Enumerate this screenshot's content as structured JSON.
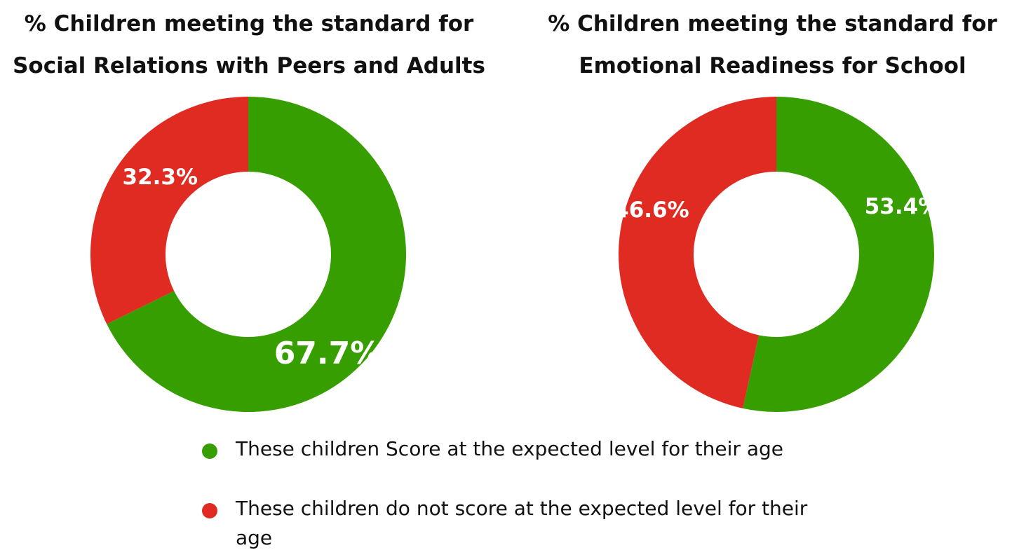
{
  "colors": {
    "meets": "#379e00",
    "not_meets": "#e02b22",
    "label": "#ffffff"
  },
  "chart_data": [
    {
      "type": "pie",
      "style": "donut",
      "title": "% Children meeting the standard for Social Relations with Peers and Adults",
      "title_lines": [
        "% Children meeting the standard for",
        "Social Relations with Peers and Adults"
      ],
      "categories": [
        "These children Score at the expected level for their age",
        "These children do not score at the expected level for their age"
      ],
      "values": [
        67.7,
        32.3
      ],
      "data_labels": [
        "67.7%",
        "32.3%"
      ]
    },
    {
      "type": "pie",
      "style": "donut",
      "title": "% Children meeting the standard for Emotional Readiness for School",
      "title_lines": [
        "% Children meeting the standard for",
        "Emotional Readiness for School"
      ],
      "categories": [
        "These children Score at the expected level for their age",
        "These children do not score at the expected level for their age"
      ],
      "values": [
        53.4,
        46.6
      ],
      "data_labels": [
        "53.4%",
        "46.6%"
      ]
    }
  ],
  "legend": {
    "items": [
      {
        "label": "These children Score at the expected level for their age"
      },
      {
        "label": "These children do not score at the expected level for their age"
      }
    ]
  }
}
